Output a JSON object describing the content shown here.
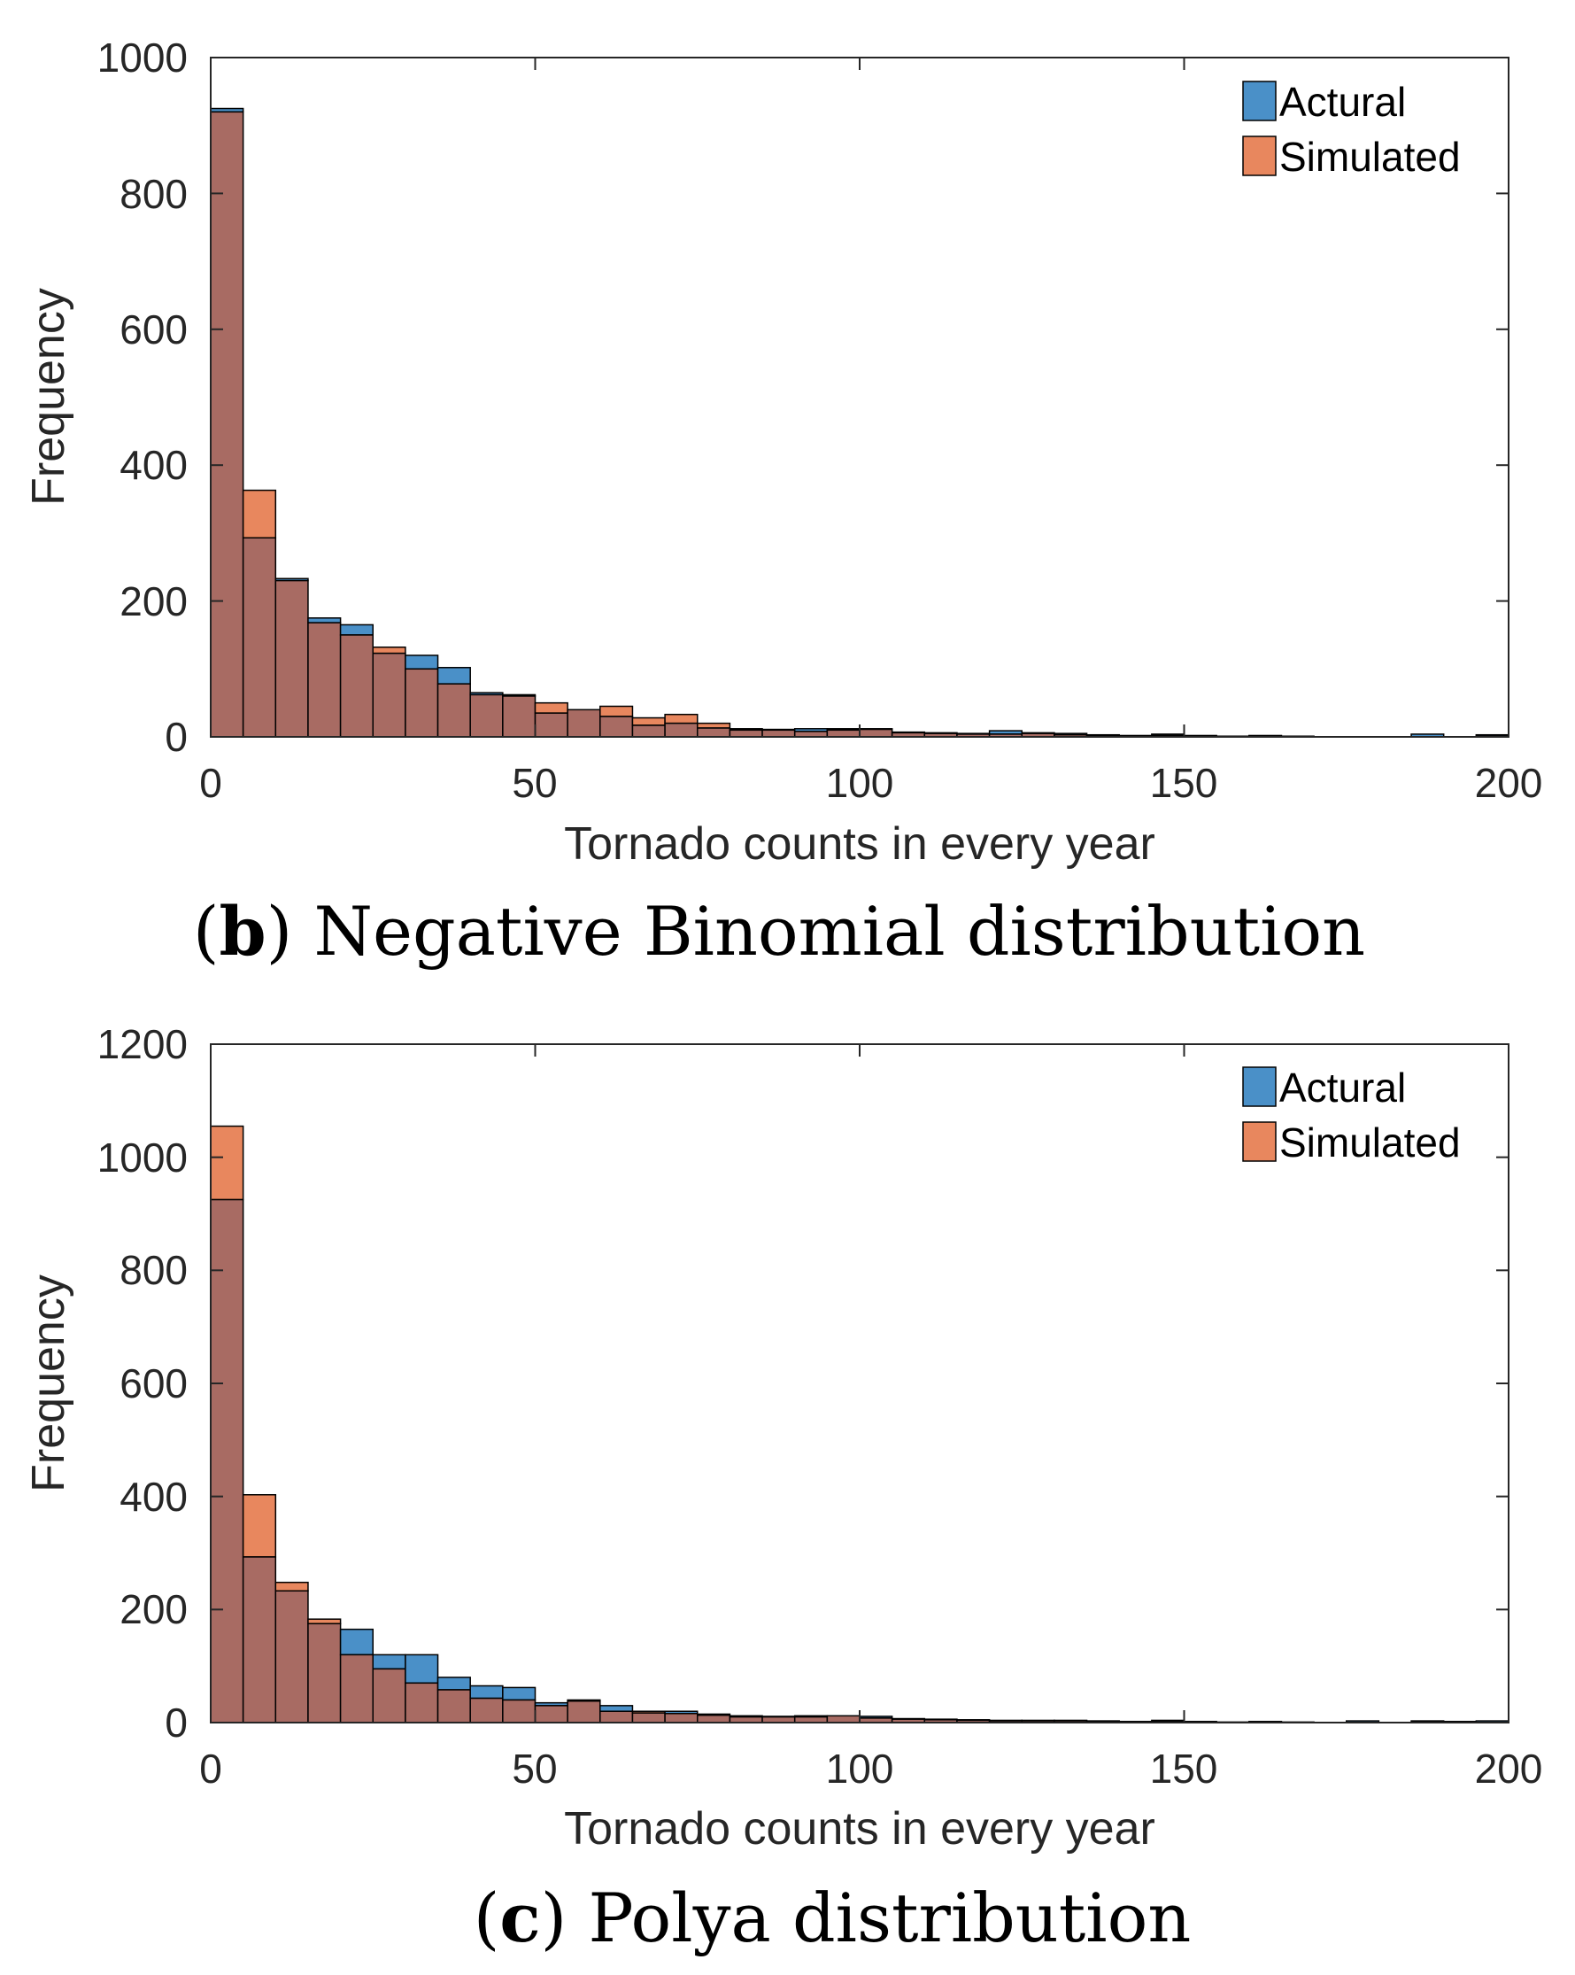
{
  "colors": {
    "actual": "#4a90c8",
    "simulated": "#e8875e",
    "overlap": "#a86b63",
    "edge": "#000000",
    "axis": "#262626"
  },
  "chart_data": [
    {
      "type": "bar",
      "subtype": "overlaid-histogram",
      "caption_letter": "b",
      "caption_text": "Negative Binomial distribution",
      "xlabel": "Tornado counts in every year",
      "ylabel": "Frequency",
      "xlim": [
        0,
        200
      ],
      "ylim": [
        0,
        1000
      ],
      "xticks": [
        "0",
        "50",
        "100",
        "150",
        "200"
      ],
      "yticks": [
        "0",
        "200",
        "400",
        "600",
        "800",
        "1000"
      ],
      "bin_width": 5,
      "legend": [
        "Actural",
        "Simulated"
      ],
      "legend_position": "top-right",
      "series": [
        {
          "name": "Actural",
          "values": [
            925,
            293,
            233,
            175,
            165,
            123,
            120,
            102,
            65,
            62,
            35,
            40,
            30,
            17,
            20,
            13,
            10,
            11,
            12,
            12,
            11,
            7,
            5,
            5,
            9,
            6,
            5,
            3,
            2,
            4,
            2,
            1,
            2,
            1,
            0,
            0,
            0,
            4,
            0,
            3,
            3
          ]
        },
        {
          "name": "Simulated",
          "values": [
            920,
            363,
            230,
            168,
            150,
            132,
            100,
            78,
            62,
            60,
            50,
            40,
            45,
            28,
            33,
            20,
            12,
            10,
            8,
            10,
            12,
            6,
            6,
            4,
            4,
            5,
            3,
            2,
            2,
            2,
            1,
            1,
            1,
            1,
            0,
            0,
            0,
            0,
            0,
            1,
            1
          ]
        }
      ]
    },
    {
      "type": "bar",
      "subtype": "overlaid-histogram",
      "caption_letter": "c",
      "caption_text": "Polya distribution",
      "xlabel": "Tornado counts in every year",
      "ylabel": "Frequency",
      "xlim": [
        0,
        200
      ],
      "ylim": [
        0,
        1200
      ],
      "xticks": [
        "0",
        "50",
        "100",
        "150",
        "200"
      ],
      "yticks": [
        "0",
        "200",
        "400",
        "600",
        "800",
        "1000",
        "1200"
      ],
      "bin_width": 5,
      "legend": [
        "Actural",
        "Simulated"
      ],
      "legend_position": "top-right",
      "series": [
        {
          "name": "Actural",
          "values": [
            925,
            293,
            233,
            175,
            165,
            120,
            120,
            80,
            65,
            62,
            35,
            40,
            30,
            17,
            20,
            13,
            10,
            11,
            12,
            12,
            11,
            7,
            5,
            5,
            4,
            4,
            3,
            3,
            2,
            4,
            2,
            1,
            2,
            1,
            0,
            3,
            0,
            3,
            2,
            3,
            3
          ]
        },
        {
          "name": "Simulated",
          "values": [
            1055,
            403,
            248,
            183,
            120,
            95,
            70,
            58,
            43,
            40,
            30,
            38,
            20,
            20,
            16,
            15,
            12,
            10,
            10,
            12,
            8,
            6,
            6,
            4,
            3,
            3,
            4,
            2,
            2,
            2,
            1,
            1,
            1,
            1,
            0,
            0,
            0,
            1,
            0,
            0,
            1
          ]
        }
      ]
    }
  ]
}
